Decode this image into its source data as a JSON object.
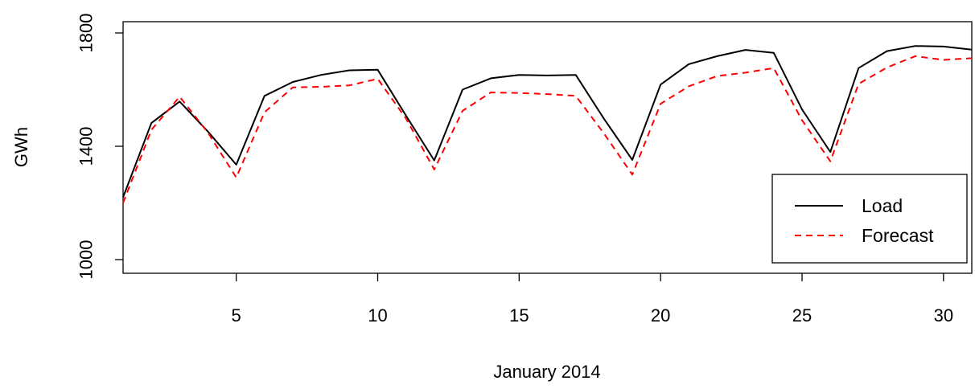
{
  "chart_data": {
    "type": "line",
    "xlabel": "January 2014",
    "ylabel": "GWh",
    "xlim": [
      1,
      31
    ],
    "ylim": [
      1000,
      1800
    ],
    "xticks": [
      5,
      10,
      15,
      20,
      25,
      30
    ],
    "yticks": [
      1000,
      1400,
      1800
    ],
    "x": [
      1,
      2,
      3,
      4,
      5,
      6,
      7,
      8,
      9,
      10,
      11,
      12,
      13,
      14,
      15,
      16,
      17,
      18,
      19,
      20,
      21,
      22,
      23,
      24,
      25,
      26,
      27,
      28,
      29,
      30,
      31
    ],
    "legend_position": "bottom-right",
    "series": [
      {
        "name": "Load",
        "color": "#000000",
        "style": "solid",
        "values": [
          1220,
          1482,
          1558,
          1452,
          1335,
          1578,
          1627,
          1652,
          1668,
          1670,
          1508,
          1350,
          1600,
          1640,
          1652,
          1650,
          1652,
          1497,
          1352,
          1618,
          1690,
          1718,
          1740,
          1730,
          1530,
          1380,
          1676,
          1736,
          1754,
          1752,
          1741
        ]
      },
      {
        "name": "Forecast",
        "color": "#ff0000",
        "style": "dashed",
        "values": [
          1200,
          1458,
          1575,
          1448,
          1290,
          1520,
          1608,
          1610,
          1615,
          1638,
          1498,
          1318,
          1525,
          1590,
          1588,
          1584,
          1578,
          1445,
          1300,
          1550,
          1612,
          1648,
          1660,
          1676,
          1492,
          1347,
          1620,
          1678,
          1718,
          1705,
          1711
        ]
      }
    ]
  }
}
